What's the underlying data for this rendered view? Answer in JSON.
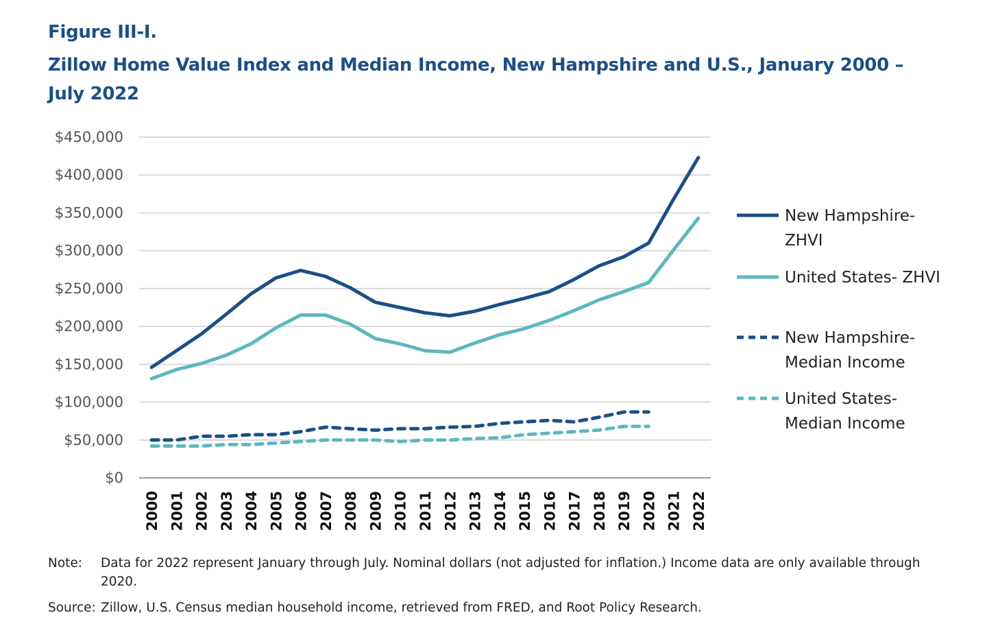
{
  "figure_label": "Figure III-I.",
  "chart_data": {
    "type": "line",
    "title": "Zillow Home Value Index and Median Income, New Hampshire and U.S., January 2000 – July 2022",
    "xlabel": "",
    "ylabel": "",
    "ylim": [
      0,
      450000
    ],
    "yticks": [
      "$0",
      "$50,000",
      "$100,000",
      "$150,000",
      "$200,000",
      "$250,000",
      "$300,000",
      "$350,000",
      "$400,000",
      "$450,000"
    ],
    "categories": [
      "2000",
      "2001",
      "2002",
      "2003",
      "2004",
      "2005",
      "2006",
      "2007",
      "2008",
      "2009",
      "2010",
      "2011",
      "2012",
      "2013",
      "2014",
      "2015",
      "2016",
      "2017",
      "2018",
      "2019",
      "2020",
      "2021",
      "2022"
    ],
    "grid": true,
    "legend_placement": "right",
    "series": [
      {
        "name": "New Hampshire- ZHVI",
        "legend_lines": [
          "New Hampshire-",
          "ZHVI"
        ],
        "color": "#1c4f86",
        "dash": false,
        "values": [
          146000,
          168000,
          190000,
          216000,
          243000,
          264000,
          274000,
          266000,
          251000,
          232000,
          225000,
          218000,
          214000,
          220000,
          229000,
          237000,
          246000,
          262000,
          280000,
          292000,
          310000,
          368000,
          423000
        ]
      },
      {
        "name": "United States- ZHVI",
        "legend_lines": [
          "United States- ZHVI"
        ],
        "color": "#5cb8bd",
        "dash": false,
        "values": [
          131000,
          143000,
          151000,
          162000,
          177000,
          198000,
          215000,
          215000,
          203000,
          184000,
          177000,
          168000,
          166000,
          178000,
          189000,
          197000,
          208000,
          221000,
          235000,
          246000,
          258000,
          301000,
          343000
        ]
      },
      {
        "name": "New Hampshire- Median Income",
        "legend_lines": [
          "New Hampshire-",
          "Median Income"
        ],
        "color": "#1c4f86",
        "dash": true,
        "values": [
          50000,
          50000,
          55000,
          55000,
          57000,
          57000,
          61000,
          67000,
          65000,
          63000,
          65000,
          65000,
          67000,
          68000,
          72000,
          74000,
          76000,
          74000,
          80000,
          87000,
          87000,
          null,
          null
        ]
      },
      {
        "name": "United States- Median Income",
        "legend_lines": [
          "United States-",
          "Median Income"
        ],
        "color": "#5cb8bd",
        "dash": true,
        "values": [
          42000,
          42000,
          42000,
          44000,
          44000,
          46000,
          48000,
          50000,
          50000,
          50000,
          48000,
          50000,
          50000,
          52000,
          53000,
          57000,
          59000,
          61000,
          63000,
          68000,
          68000,
          null,
          null
        ]
      }
    ]
  },
  "notes": {
    "note_label": "Note:",
    "note_text": "Data for 2022 represent January through July. Nominal dollars (not adjusted for inflation.) Income data are only available through 2020.",
    "source_label": "Source:",
    "source_text": "Zillow, U.S. Census median household income, retrieved from FRED, and Root Policy Research."
  }
}
